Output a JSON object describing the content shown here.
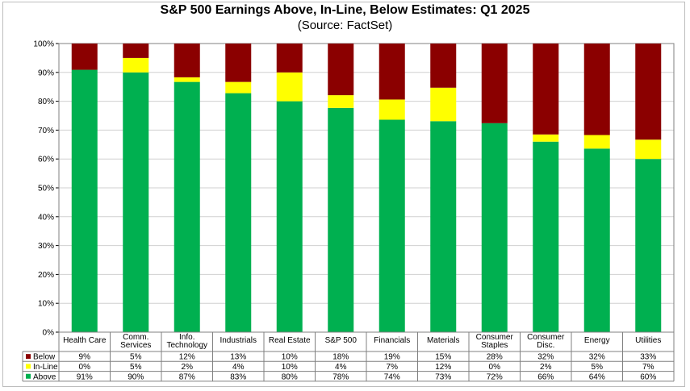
{
  "chart_data": {
    "type": "bar",
    "stacked": true,
    "title": "S&P 500 Earnings Above, In-Line, Below Estimates: Q1 2025",
    "subtitle": "(Source: FactSet)",
    "xlabel": "",
    "ylabel": "",
    "ylim": [
      0,
      100
    ],
    "yticks": [
      "0%",
      "10%",
      "20%",
      "30%",
      "40%",
      "50%",
      "60%",
      "70%",
      "80%",
      "90%",
      "100%"
    ],
    "grid": true,
    "categories": [
      [
        "Health Care"
      ],
      [
        "Comm.",
        "Services"
      ],
      [
        "Info.",
        "Technology"
      ],
      [
        "Industrials"
      ],
      [
        "Real Estate"
      ],
      [
        "S&P 500"
      ],
      [
        "Financials"
      ],
      [
        "Materials"
      ],
      [
        "Consumer",
        "Staples"
      ],
      [
        "Consumer",
        "Disc."
      ],
      [
        "Energy"
      ],
      [
        "Utilities"
      ]
    ],
    "bar_values": {
      "Above": [
        90.9,
        90.0,
        86.7,
        82.8,
        80.0,
        77.7,
        73.6,
        73.1,
        72.4,
        66.0,
        63.6,
        60.0
      ],
      "In-Line": [
        0.0,
        5.0,
        1.6,
        3.9,
        10.0,
        4.4,
        7.0,
        11.6,
        0.0,
        2.5,
        4.7,
        6.7
      ],
      "Below": [
        9.1,
        5.0,
        11.7,
        13.3,
        10.0,
        17.9,
        19.4,
        15.3,
        27.6,
        31.5,
        31.7,
        33.3
      ]
    },
    "series": [
      {
        "name": "Below",
        "color": "#8b0000",
        "labels": [
          "9%",
          "5%",
          "12%",
          "13%",
          "10%",
          "18%",
          "19%",
          "15%",
          "28%",
          "32%",
          "32%",
          "33%"
        ]
      },
      {
        "name": "In-Line",
        "color": "#ffff00",
        "labels": [
          "0%",
          "5%",
          "2%",
          "4%",
          "10%",
          "4%",
          "7%",
          "12%",
          "0%",
          "2%",
          "5%",
          "7%"
        ]
      },
      {
        "name": "Above",
        "color": "#00b050",
        "labels": [
          "91%",
          "90%",
          "87%",
          "83%",
          "80%",
          "78%",
          "74%",
          "73%",
          "72%",
          "66%",
          "64%",
          "60%"
        ]
      }
    ]
  }
}
